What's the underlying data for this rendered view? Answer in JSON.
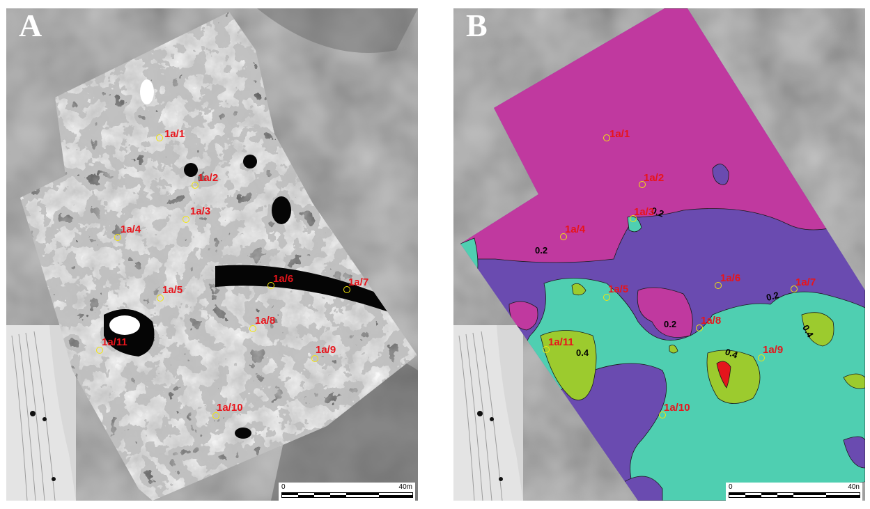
{
  "panels": [
    {
      "letter": "A",
      "kind": "magnetometry grayscale",
      "sites": [
        "1a/1",
        "1a/2",
        "1a/3",
        "1a/4",
        "1a/5",
        "1a/6",
        "1a/7",
        "1a/8",
        "1a/9",
        "1a/10",
        "1a/11"
      ],
      "scale": {
        "start": "0",
        "end": "40m"
      }
    },
    {
      "letter": "B",
      "kind": "interpolated contour map",
      "sites": [
        "1a/1",
        "1a/2",
        "1a/3",
        "1a/4",
        "1a/5",
        "1a/6",
        "1a/7",
        "1a/8",
        "1a/9",
        "1a/10",
        "1a/11"
      ],
      "contour_labels": [
        "0.2",
        "0.2",
        "0.2",
        "0.2",
        "0.4",
        "0.4",
        "0.4"
      ],
      "contour_colors": {
        "level_1": "#c0399f",
        "level_2": "#6a4bb0",
        "level_3": "#4fcfb1",
        "level_4": "#9ccb2e",
        "level_5": "#e4151c"
      },
      "scale": {
        "start": "0",
        "end": "40n"
      }
    }
  ],
  "colors": {
    "site_label": "#e8141b",
    "site_marker": "#f4e60a"
  }
}
